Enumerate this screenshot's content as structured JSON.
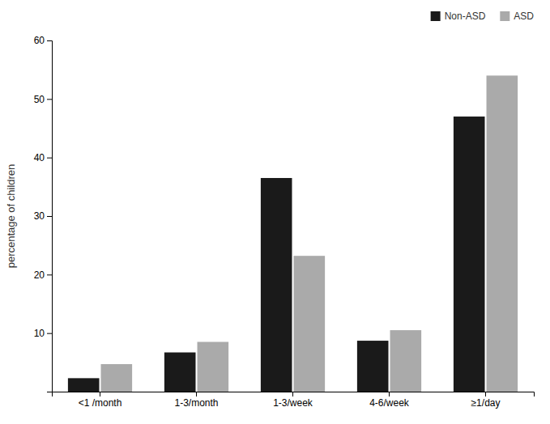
{
  "chart_data": {
    "type": "bar",
    "categories": [
      "<1 /month",
      "1-3/month",
      "1-3/week",
      "4-6/week",
      "≥1/day"
    ],
    "series": [
      {
        "name": "Non-ASD",
        "color": "#1a1a1a",
        "values": [
          2.3,
          6.7,
          36.5,
          8.7,
          47.0
        ]
      },
      {
        "name": "ASD",
        "color": "#aaaaaa",
        "values": [
          4.7,
          8.5,
          23.2,
          10.5,
          54.0
        ]
      }
    ],
    "ylabel": "percentage of children",
    "ylim": [
      0,
      60
    ],
    "yticks": [
      10,
      20,
      30,
      40,
      50,
      60
    ],
    "grid": false,
    "legend": "upper right"
  }
}
